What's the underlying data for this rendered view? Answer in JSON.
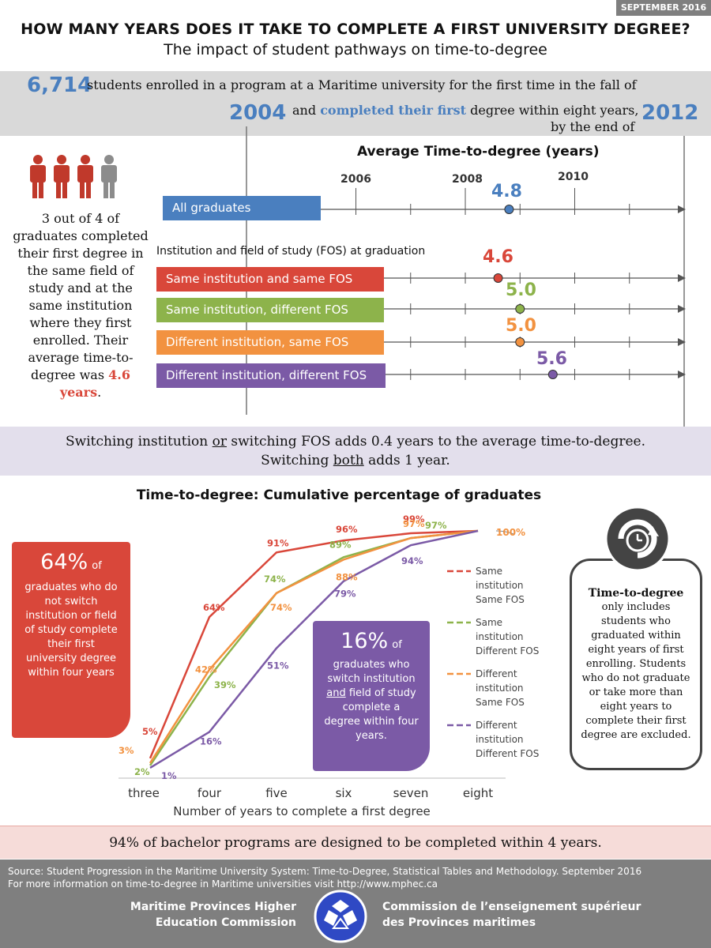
{
  "header": {
    "date": "SEPTEMBER 2016",
    "title": "HOW MANY YEARS DOES IT TAKE TO COMPLETE A FIRST UNIVERSITY DEGREE?",
    "subtitle": "The impact of student pathways on time-to-degree"
  },
  "intro": {
    "count": "6,714",
    "line1": "students enrolled in a program at a Maritime university for the first time in the fall of",
    "year_start": "2004",
    "line2_pre": "and",
    "line2_highlight": "completed their first",
    "line2_post": "degree within eight years,",
    "line3": "by the end of",
    "year_end": "2012"
  },
  "left_callout": {
    "text_pre": "3 out of 4 of graduates completed their first degree in the same field of study and at the same institution where they first enrolled. Their average time-to-degree was",
    "highlight": "4.6 years",
    "text_post": ".",
    "people_colors": [
      "#c0392b",
      "#c0392b",
      "#c0392b",
      "#8c8c8c"
    ]
  },
  "avg_chart": {
    "title": "Average Time-to-degree (years)",
    "ticks": [
      "2006",
      "2008",
      "2010"
    ],
    "group_label": "Institution and field of study (FOS) at graduation",
    "all": {
      "label": "All graduates",
      "value": "4.8",
      "num": 4.8,
      "color": "#4a7fbf"
    },
    "rows": [
      {
        "label": "Same institution and same FOS",
        "value": "4.6",
        "num": 4.6,
        "color": "#d9473a"
      },
      {
        "label": "Same institution, different FOS",
        "value": "5.0",
        "num": 5.0,
        "color": "#8db34b"
      },
      {
        "label": "Different institution, same FOS",
        "value": "5.0",
        "num": 5.0,
        "color": "#f29240"
      },
      {
        "label": "Different institution, different FOS",
        "value": "5.6",
        "num": 5.6,
        "color": "#7b5aa6"
      }
    ]
  },
  "switch_band": {
    "line1_a": "Switching institution",
    "line1_or": "or",
    "line1_b": "switching FOS adds 0.4 years to the average time-to-degree.",
    "line2_a": "Switching",
    "line2_both": "both",
    "line2_b": "adds 1 year."
  },
  "chart_data": {
    "type": "line",
    "title": "Time-to-degree: Cumulative percentage of graduates",
    "xlabel": "Number of years to complete a first degree",
    "categories": [
      "three",
      "four",
      "five",
      "six",
      "seven",
      "eight"
    ],
    "ylim": [
      0,
      100
    ],
    "series": [
      {
        "name": "Same institution Same FOS",
        "legend": [
          "Same",
          "institution",
          "Same FOS"
        ],
        "color": "#d9473a",
        "values": [
          5,
          64,
          91,
          96,
          99,
          100
        ],
        "labels": [
          "5%",
          "64%",
          "91%",
          "96%",
          "99%",
          ""
        ]
      },
      {
        "name": "Same institution Different FOS",
        "legend": [
          "Same",
          "institution",
          "Different FOS"
        ],
        "color": "#8db34b",
        "values": [
          2,
          39,
          74,
          89,
          97,
          100
        ],
        "labels": [
          "2%",
          "39%",
          "74%",
          "89%",
          "97%",
          ""
        ]
      },
      {
        "name": "Different institution Same FOS",
        "legend": [
          "Different",
          "institution",
          "Same FOS"
        ],
        "color": "#f29240",
        "values": [
          3,
          42,
          74,
          88,
          97,
          100
        ],
        "labels": [
          "3%",
          "42%",
          "74%",
          "88%",
          "97%",
          ""
        ]
      },
      {
        "name": "Different institution Different FOS",
        "legend": [
          "Different",
          "institution",
          "Different FOS"
        ],
        "color": "#7b5aa6",
        "values": [
          1,
          16,
          51,
          79,
          94,
          100
        ],
        "labels": [
          "1%",
          "16%",
          "51%",
          "79%",
          "94%",
          ""
        ]
      }
    ],
    "end_label": "100%"
  },
  "callout_64": {
    "big": "64%",
    "of": "of",
    "text": "graduates who do not switch institution or field of study complete their first university degree within four years"
  },
  "callout_16": {
    "big": "16%",
    "of": "of",
    "text_pre": "graduates who switch institution",
    "and": "and",
    "text_post": "field of study complete a degree within four years."
  },
  "rb_box": {
    "title": "Time-to-degree",
    "text": "only includes students who graduated within eight years of first enrolling. Students who do not graduate or take more than eight years to complete their first degree are excluded.",
    "icon": "clock-icon"
  },
  "bachelor_band": "94% of bachelor programs are designed to be completed within 4 years.",
  "footer": {
    "source": "Source: Student Progression in the Maritime University System: Time-to-Degree, Statistical Tables and Methodology. September 2016",
    "more": "For more information on time-to-degree in Maritime universities visit http://www.mphec.ca",
    "org_en_1": "Maritime Provinces Higher",
    "org_en_2": "Education Commission",
    "org_fr_1": "Commission de l’enseignement supérieur",
    "org_fr_2": "des Provinces maritimes",
    "logo_icon": "mphec-logo-icon"
  }
}
